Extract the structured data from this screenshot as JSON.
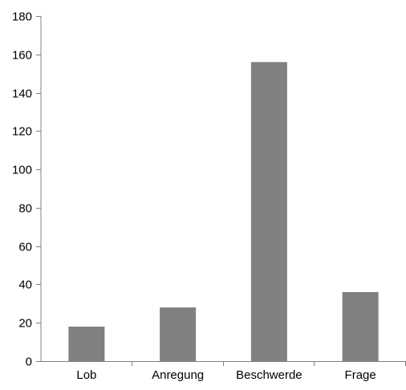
{
  "chart_data": {
    "type": "bar",
    "title": "",
    "xlabel": "",
    "ylabel": "",
    "categories": [
      "Lob",
      "Anregung",
      "Beschwerde",
      "Frage"
    ],
    "values": [
      18,
      28,
      156,
      36
    ],
    "ylim": [
      0,
      180
    ],
    "yticks": [
      0,
      20,
      40,
      60,
      80,
      100,
      120,
      140,
      160,
      180
    ],
    "grid": false,
    "legend": "none",
    "bar_color": "#808080",
    "axis_color": "#808080"
  }
}
